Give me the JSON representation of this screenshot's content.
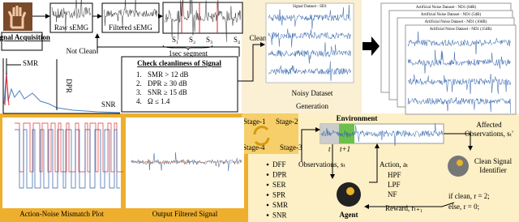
{
  "top": {
    "acquisition": "Signal Acquisition",
    "raw": "Raw sEMG",
    "filtered": "Filtered sEMG",
    "segments": [
      "S₁",
      "S₂",
      "S₃",
      "S₄"
    ],
    "segment_note": "1sec segment",
    "not_clean": "Not Clean",
    "clean": "Clean"
  },
  "spectrum": {
    "smr": "SMR",
    "dpr": "DPR",
    "snr": "SNR"
  },
  "check": {
    "title": "Check cleanliness of Signal",
    "items": [
      {
        "num": "1.",
        "text": "SMR > 12 dB"
      },
      {
        "num": "2.",
        "text": "DPR ≥ 30 dB"
      },
      {
        "num": "3.",
        "text": "SNR ≥ 15 dB"
      },
      {
        "num": "4.",
        "text": "Ω ≤ 1.4"
      }
    ]
  },
  "dataset": {
    "panel_title": "Signal Dataset - SD1",
    "label_1": "Noisy Dataset",
    "label_2": "Generation",
    "stack_titles": [
      "Artificial Noise Dataset - ND1 (0dB)",
      "Artificial Noise Dataset - ND1 (5dB)",
      "Artificial Noise Dataset - ND1 (10dB)",
      "Artificial Noise Dataset - ND1 (15dB)"
    ]
  },
  "stages": [
    "Stage-1",
    "Stage-2",
    "Stage-3",
    "Stage-4"
  ],
  "plots": {
    "mismatch": "Action-Noise Mismatch Plot",
    "output": "Output Filtered Signal"
  },
  "rl": {
    "environment": "Environment",
    "t": "t",
    "t1": "t+1",
    "features": [
      "DFF",
      "DPR",
      "SER",
      "SPR",
      "SMR",
      "SNR"
    ],
    "observations": "Observations, sₜ",
    "action": "Action, aₜ",
    "filters": [
      "HPF",
      "LPF",
      "NF"
    ],
    "reward": "Reward, rₜ₊₁",
    "agent": "Agent",
    "affected_1": "Affected",
    "affected_2": "Observations, sₜ'",
    "identifier_1": "Clean Signal",
    "identifier_2": "Identifier",
    "rule_1": "if clean,   r = 2;",
    "rule_2": "else,        r = 0;"
  }
}
